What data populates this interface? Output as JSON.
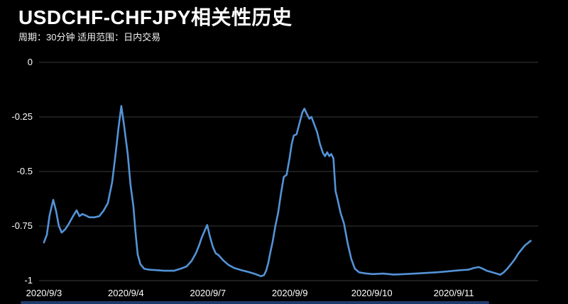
{
  "header": {
    "title": "USDCHF-CHFJPY相关性历史",
    "subtitle": "周期：30分钟 适用范围：日内交易"
  },
  "colors": {
    "background": "#000000",
    "text": "#ffffff",
    "grid": "#3a3a3a",
    "line": "#5493d7",
    "progress_bar": "#1e3c6b"
  },
  "chart_data": {
    "type": "line",
    "title": "USDCHF-CHFJPY相关性历史",
    "subtitle": "周期：30分钟 适用范围：日内交易",
    "xlabel": "",
    "ylabel": "",
    "grid": true,
    "legend": false,
    "ylim": [
      -1,
      0
    ],
    "xlim": [
      -0.06,
      6.03
    ],
    "y_ticks": [
      {
        "value": 0,
        "label": "0"
      },
      {
        "value": -0.25,
        "label": "-0.25"
      },
      {
        "value": -0.5,
        "label": "-0.5"
      },
      {
        "value": -0.75,
        "label": "-0.75"
      },
      {
        "value": -1,
        "label": "-1"
      }
    ],
    "x_ticks": [
      {
        "value": 0,
        "label": "2020/9/3"
      },
      {
        "value": 1,
        "label": "2020/9/4"
      },
      {
        "value": 2,
        "label": "2020/9/7"
      },
      {
        "value": 3,
        "label": "2020/9/9"
      },
      {
        "value": 4,
        "label": "2020/9/10"
      },
      {
        "value": 5,
        "label": "2020/9/11"
      }
    ],
    "series": [
      {
        "name": "USDCHF-CHFJPY correlation",
        "points": [
          [
            0.0,
            -0.825
          ],
          [
            0.035,
            -0.79
          ],
          [
            0.069,
            -0.7
          ],
          [
            0.113,
            -0.63
          ],
          [
            0.147,
            -0.68
          ],
          [
            0.182,
            -0.75
          ],
          [
            0.216,
            -0.78
          ],
          [
            0.26,
            -0.765
          ],
          [
            0.303,
            -0.74
          ],
          [
            0.346,
            -0.71
          ],
          [
            0.398,
            -0.678
          ],
          [
            0.433,
            -0.705
          ],
          [
            0.468,
            -0.695
          ],
          [
            0.502,
            -0.7
          ],
          [
            0.554,
            -0.71
          ],
          [
            0.615,
            -0.71
          ],
          [
            0.675,
            -0.705
          ],
          [
            0.727,
            -0.68
          ],
          [
            0.779,
            -0.645
          ],
          [
            0.831,
            -0.55
          ],
          [
            0.874,
            -0.42
          ],
          [
            0.909,
            -0.3
          ],
          [
            0.944,
            -0.2
          ],
          [
            0.978,
            -0.29
          ],
          [
            1.022,
            -0.42
          ],
          [
            1.056,
            -0.56
          ],
          [
            1.091,
            -0.66
          ],
          [
            1.117,
            -0.78
          ],
          [
            1.143,
            -0.88
          ],
          [
            1.177,
            -0.925
          ],
          [
            1.221,
            -0.945
          ],
          [
            1.281,
            -0.95
          ],
          [
            1.368,
            -0.952
          ],
          [
            1.472,
            -0.955
          ],
          [
            1.584,
            -0.955
          ],
          [
            1.671,
            -0.945
          ],
          [
            1.74,
            -0.935
          ],
          [
            1.801,
            -0.91
          ],
          [
            1.853,
            -0.875
          ],
          [
            1.896,
            -0.835
          ],
          [
            1.918,
            -0.81
          ],
          [
            1.939,
            -0.79
          ],
          [
            1.991,
            -0.745
          ],
          [
            2.026,
            -0.8
          ],
          [
            2.061,
            -0.845
          ],
          [
            2.095,
            -0.875
          ],
          [
            2.13,
            -0.883
          ],
          [
            2.19,
            -0.908
          ],
          [
            2.251,
            -0.928
          ],
          [
            2.32,
            -0.942
          ],
          [
            2.407,
            -0.952
          ],
          [
            2.494,
            -0.96
          ],
          [
            2.58,
            -0.97
          ],
          [
            2.649,
            -0.98
          ],
          [
            2.684,
            -0.975
          ],
          [
            2.71,
            -0.955
          ],
          [
            2.736,
            -0.92
          ],
          [
            2.762,
            -0.87
          ],
          [
            2.788,
            -0.825
          ],
          [
            2.823,
            -0.75
          ],
          [
            2.857,
            -0.69
          ],
          [
            2.892,
            -0.6
          ],
          [
            2.926,
            -0.525
          ],
          [
            2.961,
            -0.515
          ],
          [
            2.996,
            -0.44
          ],
          [
            3.022,
            -0.375
          ],
          [
            3.048,
            -0.335
          ],
          [
            3.082,
            -0.33
          ],
          [
            3.117,
            -0.28
          ],
          [
            3.152,
            -0.23
          ],
          [
            3.177,
            -0.212
          ],
          [
            3.212,
            -0.24
          ],
          [
            3.238,
            -0.258
          ],
          [
            3.264,
            -0.25
          ],
          [
            3.299,
            -0.285
          ],
          [
            3.333,
            -0.32
          ],
          [
            3.368,
            -0.375
          ],
          [
            3.403,
            -0.415
          ],
          [
            3.429,
            -0.43
          ],
          [
            3.455,
            -0.412
          ],
          [
            3.481,
            -0.43
          ],
          [
            3.506,
            -0.42
          ],
          [
            3.532,
            -0.44
          ],
          [
            3.558,
            -0.59
          ],
          [
            3.584,
            -0.63
          ],
          [
            3.619,
            -0.69
          ],
          [
            3.662,
            -0.74
          ],
          [
            3.706,
            -0.83
          ],
          [
            3.749,
            -0.9
          ],
          [
            3.792,
            -0.945
          ],
          [
            3.844,
            -0.962
          ],
          [
            3.922,
            -0.967
          ],
          [
            4.009,
            -0.97
          ],
          [
            4.139,
            -0.968
          ],
          [
            4.268,
            -0.972
          ],
          [
            4.398,
            -0.97
          ],
          [
            4.528,
            -0.968
          ],
          [
            4.658,
            -0.965
          ],
          [
            4.788,
            -0.962
          ],
          [
            4.918,
            -0.958
          ],
          [
            5.004,
            -0.955
          ],
          [
            5.091,
            -0.952
          ],
          [
            5.177,
            -0.95
          ],
          [
            5.247,
            -0.942
          ],
          [
            5.307,
            -0.938
          ],
          [
            5.351,
            -0.945
          ],
          [
            5.403,
            -0.955
          ],
          [
            5.437,
            -0.958
          ],
          [
            5.481,
            -0.963
          ],
          [
            5.524,
            -0.968
          ],
          [
            5.567,
            -0.973
          ],
          [
            5.61,
            -0.962
          ],
          [
            5.654,
            -0.945
          ],
          [
            5.697,
            -0.925
          ],
          [
            5.74,
            -0.905
          ],
          [
            5.784,
            -0.878
          ],
          [
            5.827,
            -0.857
          ],
          [
            5.87,
            -0.838
          ],
          [
            5.905,
            -0.828
          ],
          [
            5.922,
            -0.822
          ],
          [
            5.939,
            -0.818
          ]
        ]
      }
    ]
  },
  "progress_bar": {
    "present": true
  }
}
